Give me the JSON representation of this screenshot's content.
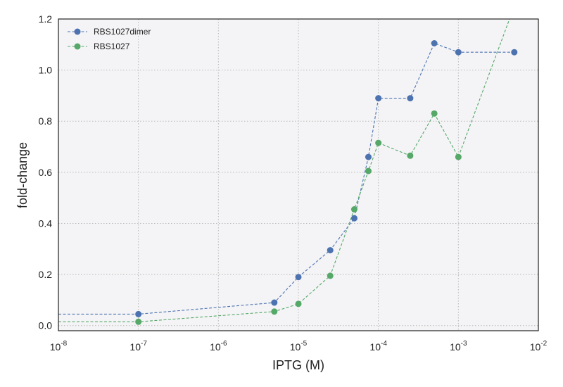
{
  "chart_data": {
    "type": "line",
    "title": "",
    "xlabel": "IPTG (M)",
    "ylabel": "fold-change",
    "xscale": "log",
    "xlim": [
      1e-08,
      0.01
    ],
    "ylim": [
      -0.02,
      1.2
    ],
    "xticks": [
      {
        "base": "10",
        "exp": "-8",
        "value": 1e-08
      },
      {
        "base": "10",
        "exp": "-7",
        "value": 1e-07
      },
      {
        "base": "10",
        "exp": "-6",
        "value": 1e-06
      },
      {
        "base": "10",
        "exp": "-5",
        "value": 1e-05
      },
      {
        "base": "10",
        "exp": "-4",
        "value": 0.0001
      },
      {
        "base": "10",
        "exp": "-3",
        "value": 0.001
      },
      {
        "base": "10",
        "exp": "-2",
        "value": 0.01
      }
    ],
    "yticks": [
      "0.0",
      "0.2",
      "0.4",
      "0.6",
      "0.8",
      "1.0",
      "1.2"
    ],
    "grid": true,
    "legend_position": "top-left",
    "background_color": "#f4f4f6",
    "series": [
      {
        "name": "RBS1027dimer",
        "color": "#4c72b0",
        "line_start": [
          1e-08,
          0.045
        ],
        "points": [
          [
            1e-07,
            0.045
          ],
          [
            5e-06,
            0.09
          ],
          [
            1e-05,
            0.19
          ],
          [
            2.5e-05,
            0.295
          ],
          [
            5e-05,
            0.42
          ],
          [
            7.5e-05,
            0.66
          ],
          [
            0.0001,
            0.89
          ],
          [
            0.00025,
            0.89
          ],
          [
            0.0005,
            1.105
          ],
          [
            0.001,
            1.07
          ],
          [
            0.005,
            1.07
          ]
        ]
      },
      {
        "name": "RBS1027",
        "color": "#55a868",
        "line_start": [
          1e-08,
          0.015
        ],
        "points": [
          [
            1e-07,
            0.015
          ],
          [
            5e-06,
            0.055
          ],
          [
            1e-05,
            0.085
          ],
          [
            2.5e-05,
            0.195
          ],
          [
            5e-05,
            0.455
          ],
          [
            7.5e-05,
            0.605
          ],
          [
            0.0001,
            0.715
          ],
          [
            0.00025,
            0.665
          ],
          [
            0.0005,
            0.83
          ],
          [
            0.001,
            0.66
          ]
        ],
        "line_end": [
          0.005,
          1.25
        ]
      }
    ]
  }
}
